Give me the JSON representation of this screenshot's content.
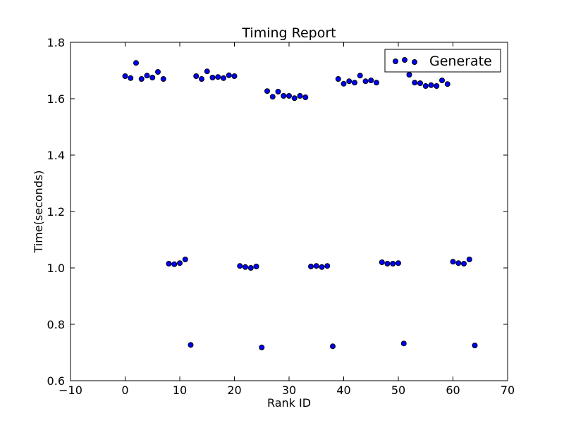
{
  "chart_data": {
    "type": "scatter",
    "title": "Timing Report",
    "xlabel": "Rank ID",
    "ylabel": "Time(seconds)",
    "xlim": [
      -10,
      70
    ],
    "ylim": [
      0.6,
      1.8
    ],
    "xticks": [
      -10,
      0,
      10,
      20,
      30,
      40,
      50,
      60,
      70
    ],
    "xtick_labels": [
      "−10",
      "0",
      "10",
      "20",
      "30",
      "40",
      "50",
      "60",
      "70"
    ],
    "yticks": [
      0.6,
      0.8,
      1.0,
      1.2,
      1.4,
      1.6,
      1.8
    ],
    "ytick_labels": [
      "0.6",
      "0.8",
      "1.0",
      "1.2",
      "1.4",
      "1.6",
      "1.8"
    ],
    "grid": false,
    "legend": {
      "placement": "top-right",
      "entries": [
        "Generate"
      ]
    },
    "series": [
      {
        "name": "Generate",
        "color": "#0000ff",
        "x": [
          0,
          1,
          2,
          3,
          4,
          5,
          6,
          7,
          8,
          9,
          10,
          11,
          12,
          13,
          14,
          15,
          16,
          17,
          18,
          19,
          20,
          21,
          22,
          23,
          24,
          25,
          26,
          27,
          28,
          29,
          30,
          31,
          32,
          33,
          34,
          35,
          36,
          37,
          38,
          39,
          40,
          41,
          42,
          43,
          44,
          45,
          46,
          47,
          48,
          49,
          50,
          51,
          52,
          53,
          54,
          55,
          56,
          57,
          58,
          59,
          60,
          61,
          62,
          63,
          64
        ],
        "y": [
          1.68,
          1.673,
          1.727,
          1.67,
          1.682,
          1.675,
          1.695,
          1.67,
          1.015,
          1.013,
          1.017,
          1.03,
          0.727,
          1.68,
          1.67,
          1.697,
          1.675,
          1.677,
          1.673,
          1.683,
          1.68,
          1.007,
          1.003,
          1.0,
          1.005,
          0.718,
          1.627,
          1.607,
          1.625,
          1.61,
          1.61,
          1.602,
          1.61,
          1.605,
          1.005,
          1.007,
          1.003,
          1.007,
          0.722,
          1.67,
          1.653,
          1.662,
          1.657,
          1.682,
          1.662,
          1.665,
          1.657,
          1.02,
          1.015,
          1.015,
          1.017,
          0.732,
          1.685,
          1.657,
          1.655,
          1.645,
          1.648,
          1.645,
          1.665,
          1.652,
          1.022,
          1.017,
          1.015,
          1.03,
          0.725
        ]
      }
    ]
  }
}
